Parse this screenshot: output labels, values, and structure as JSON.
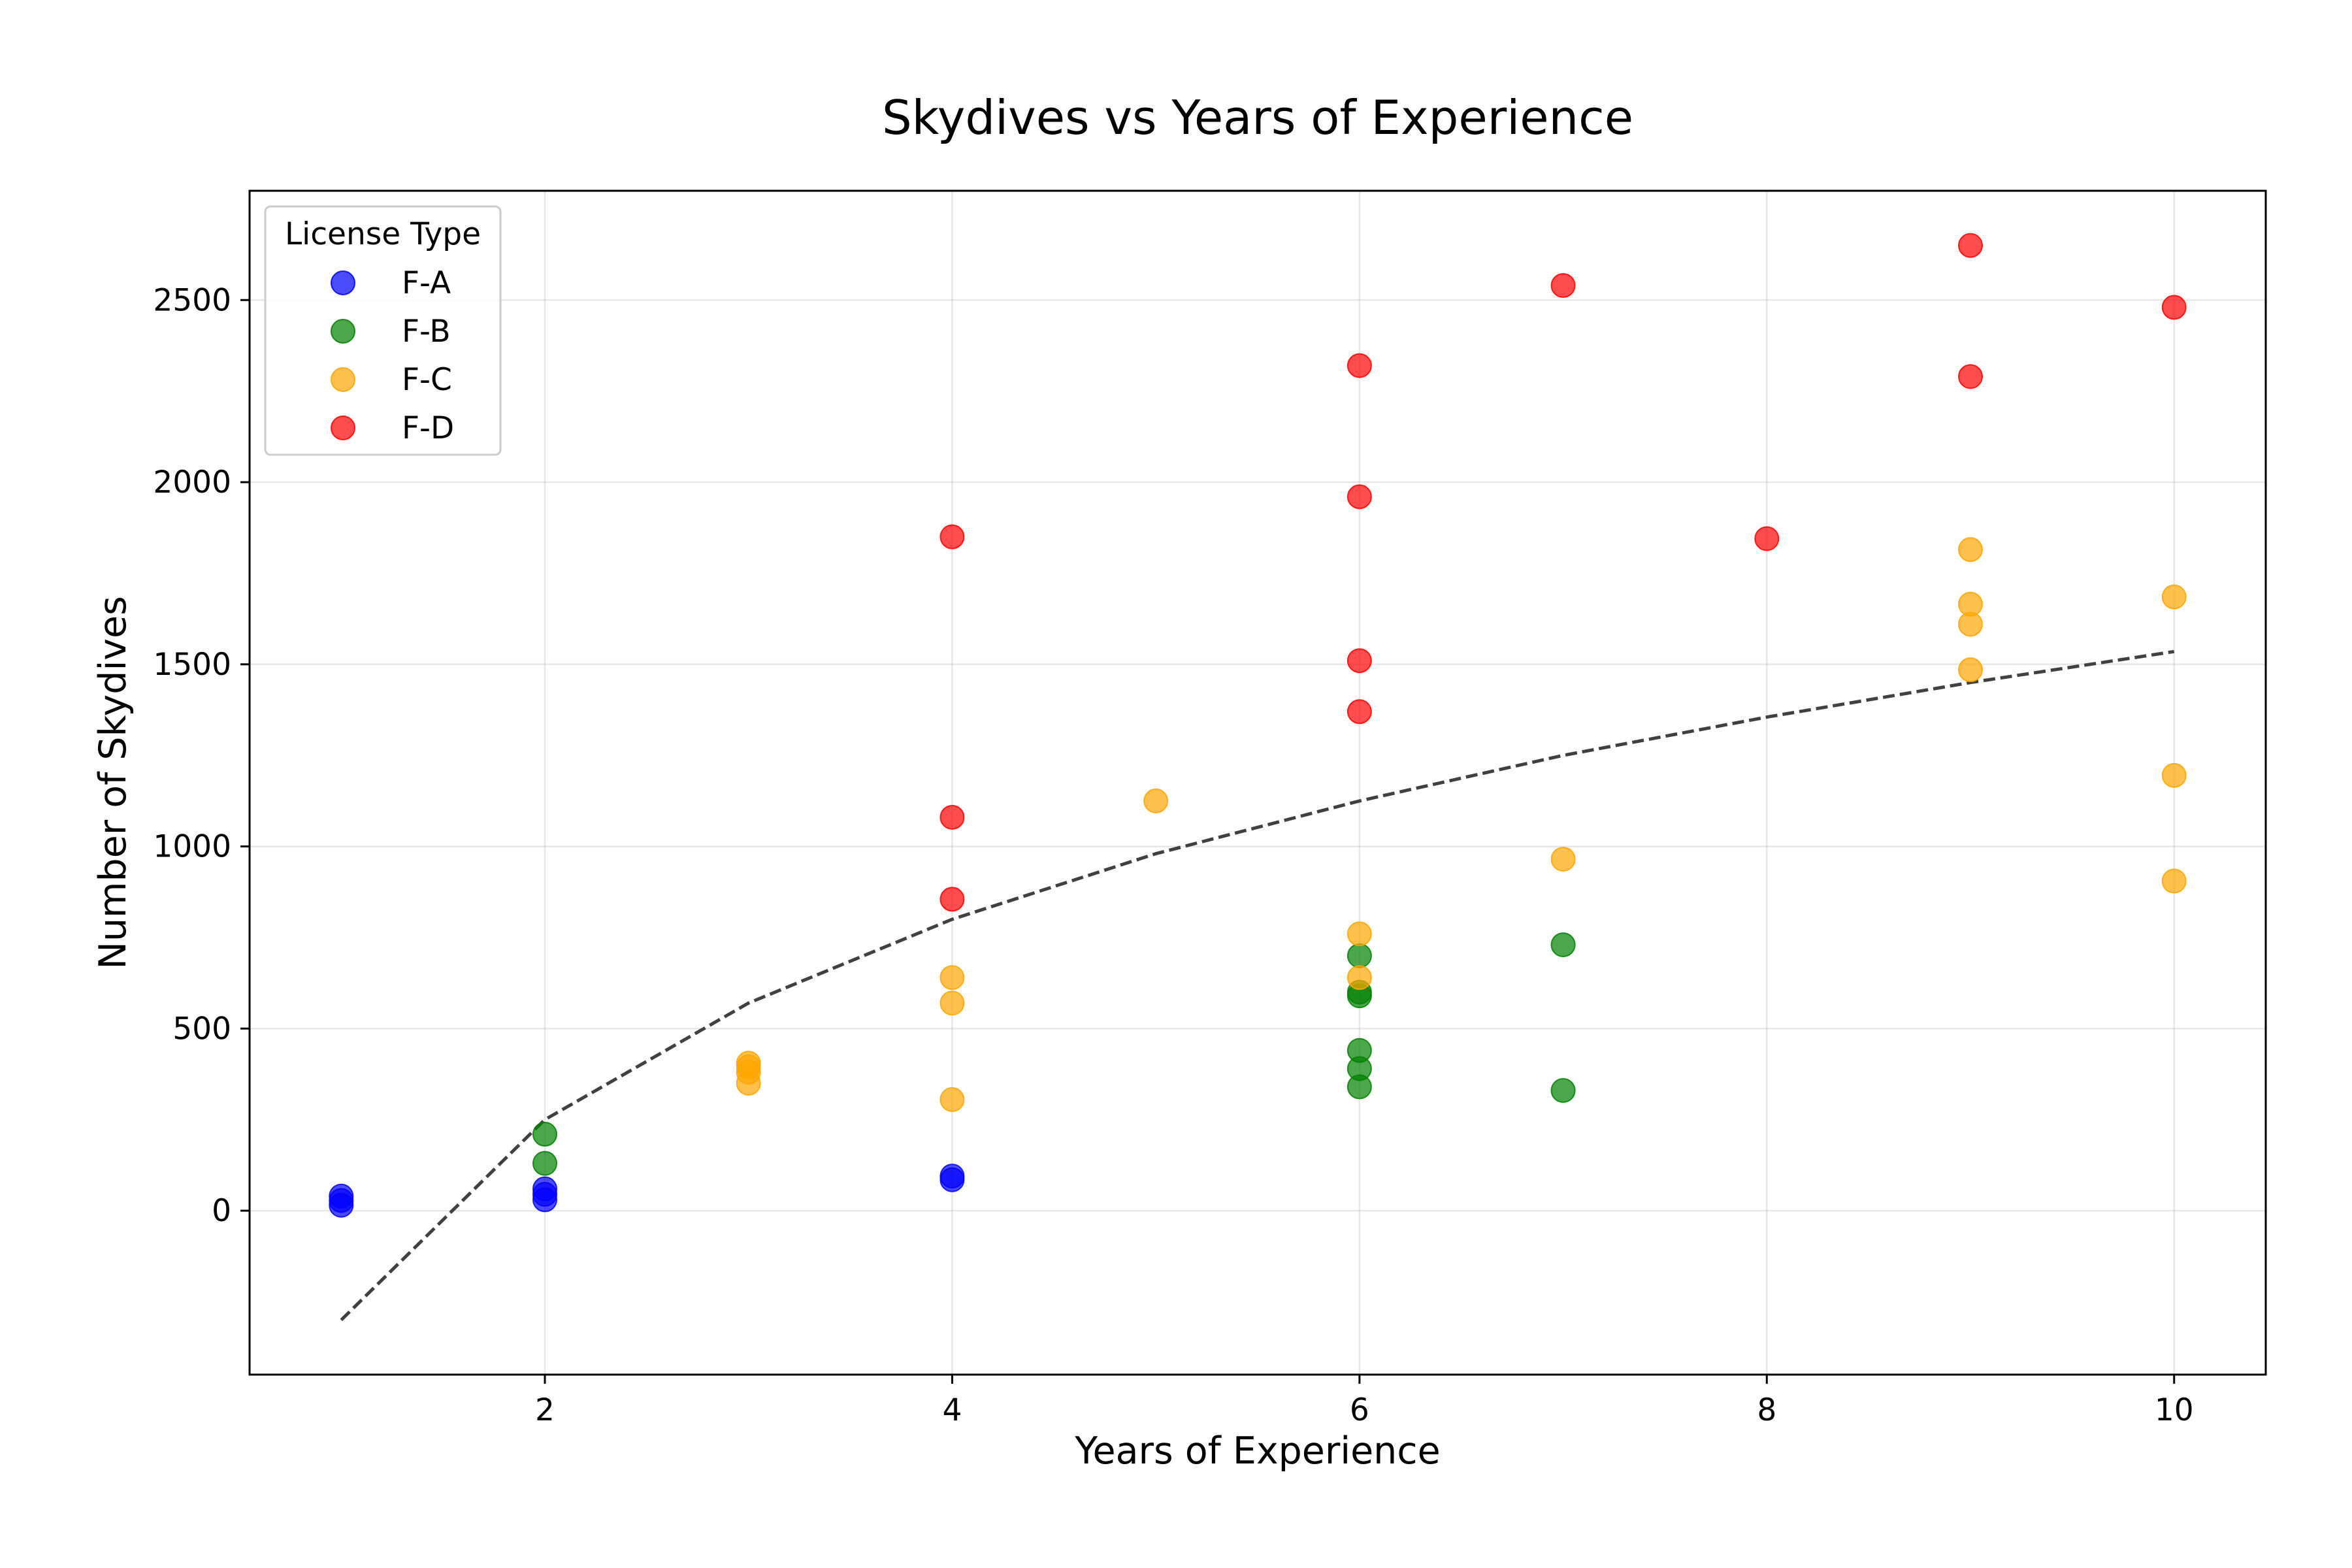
{
  "chart_data": {
    "type": "scatter",
    "title": "Skydives vs Years of Experience",
    "xlabel": "Years of Experience",
    "ylabel": "Number of Skydives",
    "xlim": [
      0.55,
      10.45
    ],
    "ylim": [
      -450,
      2800
    ],
    "xticks": [
      2,
      4,
      6,
      8,
      10
    ],
    "yticks": [
      0,
      500,
      1000,
      1500,
      2000,
      2500
    ],
    "grid": true,
    "legend": {
      "title": "License Type",
      "position": "top-left"
    },
    "series": [
      {
        "name": "F-A",
        "color": "#0000ff",
        "points": [
          [
            1,
            15
          ],
          [
            1,
            28
          ],
          [
            1,
            40
          ],
          [
            2,
            30
          ],
          [
            2,
            45
          ],
          [
            2,
            60
          ],
          [
            4,
            85
          ],
          [
            4,
            95
          ]
        ]
      },
      {
        "name": "F-B",
        "color": "#008000",
        "points": [
          [
            2,
            130
          ],
          [
            2,
            210
          ],
          [
            6,
            340
          ],
          [
            6,
            390
          ],
          [
            6,
            440
          ],
          [
            6,
            590
          ],
          [
            6,
            600
          ],
          [
            6,
            700
          ],
          [
            7,
            330
          ],
          [
            7,
            730
          ]
        ]
      },
      {
        "name": "F-C",
        "color": "#ffa500",
        "points": [
          [
            3,
            350
          ],
          [
            3,
            380
          ],
          [
            3,
            395
          ],
          [
            3,
            405
          ],
          [
            4,
            305
          ],
          [
            4,
            570
          ],
          [
            4,
            640
          ],
          [
            5,
            1125
          ],
          [
            6,
            640
          ],
          [
            6,
            760
          ],
          [
            7,
            965
          ],
          [
            9,
            1485
          ],
          [
            9,
            1610
          ],
          [
            9,
            1665
          ],
          [
            9,
            1815
          ],
          [
            10,
            905
          ],
          [
            10,
            1195
          ],
          [
            10,
            1685
          ]
        ]
      },
      {
        "name": "F-D",
        "color": "#ff0000",
        "points": [
          [
            4,
            855
          ],
          [
            4,
            1080
          ],
          [
            4,
            1850
          ],
          [
            6,
            1370
          ],
          [
            6,
            1510
          ],
          [
            6,
            1960
          ],
          [
            6,
            2320
          ],
          [
            7,
            2540
          ],
          [
            8,
            1845
          ],
          [
            9,
            2290
          ],
          [
            9,
            2650
          ],
          [
            10,
            2480
          ]
        ]
      }
    ],
    "trend_line": {
      "style": "dashed",
      "color": "#404040",
      "points": [
        [
          1,
          -300
        ],
        [
          2,
          250
        ],
        [
          3,
          570
        ],
        [
          4,
          800
        ],
        [
          5,
          980
        ],
        [
          6,
          1125
        ],
        [
          7,
          1250
        ],
        [
          8,
          1355
        ],
        [
          9,
          1450
        ],
        [
          10,
          1535
        ]
      ]
    }
  }
}
